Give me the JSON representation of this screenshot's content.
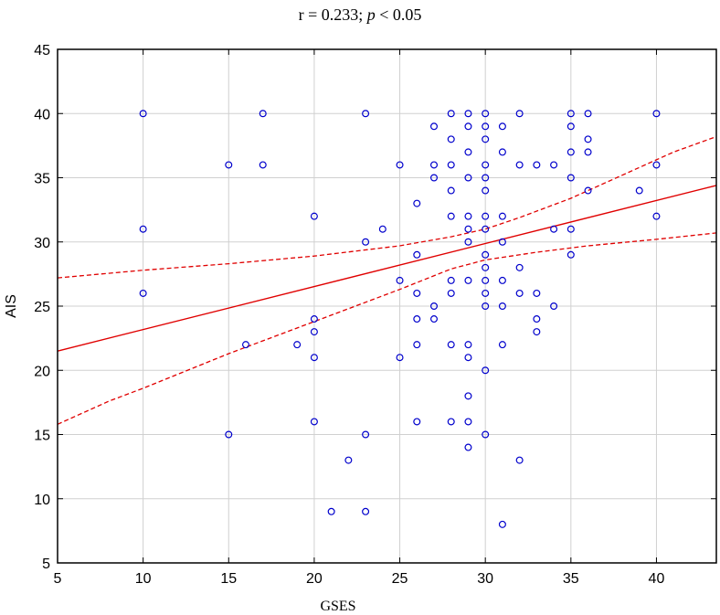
{
  "chart_data": {
    "type": "scatter",
    "title_parts": [
      "r = 0.233; ",
      "p",
      " < 0.05"
    ],
    "xlabel": "GSES",
    "ylabel": "AIS",
    "xlim": [
      5,
      43.5
    ],
    "ylim": [
      5,
      45
    ],
    "xticks": [
      5,
      10,
      15,
      20,
      25,
      30,
      35,
      40
    ],
    "yticks": [
      5,
      10,
      15,
      20,
      25,
      30,
      35,
      40,
      45
    ],
    "grid": true,
    "colors": {
      "points": "#0000cc",
      "fit": "#e00000",
      "grid": "#d0d0d0"
    },
    "points": [
      [
        10,
        40
      ],
      [
        10,
        31
      ],
      [
        10,
        26
      ],
      [
        15,
        36
      ],
      [
        15,
        15
      ],
      [
        16,
        22
      ],
      [
        17,
        40
      ],
      [
        17,
        36
      ],
      [
        19,
        22
      ],
      [
        20,
        32
      ],
      [
        20,
        24
      ],
      [
        20,
        23
      ],
      [
        20,
        21
      ],
      [
        20,
        16
      ],
      [
        21,
        9
      ],
      [
        22,
        13
      ],
      [
        23,
        40
      ],
      [
        23,
        30
      ],
      [
        23,
        15
      ],
      [
        23,
        9
      ],
      [
        24,
        31
      ],
      [
        25,
        36
      ],
      [
        25,
        27
      ],
      [
        25,
        21
      ],
      [
        26,
        33
      ],
      [
        26,
        29
      ],
      [
        26,
        26
      ],
      [
        26,
        24
      ],
      [
        26,
        22
      ],
      [
        26,
        16
      ],
      [
        27,
        39
      ],
      [
        27,
        36
      ],
      [
        27,
        35
      ],
      [
        27,
        25
      ],
      [
        27,
        24
      ],
      [
        28,
        40
      ],
      [
        28,
        38
      ],
      [
        28,
        36
      ],
      [
        28,
        34
      ],
      [
        28,
        32
      ],
      [
        28,
        27
      ],
      [
        28,
        26
      ],
      [
        28,
        22
      ],
      [
        28,
        16
      ],
      [
        29,
        40
      ],
      [
        29,
        39
      ],
      [
        29,
        37
      ],
      [
        29,
        35
      ],
      [
        29,
        32
      ],
      [
        29,
        31
      ],
      [
        29,
        30
      ],
      [
        29,
        27
      ],
      [
        29,
        22
      ],
      [
        29,
        21
      ],
      [
        29,
        18
      ],
      [
        29,
        16
      ],
      [
        29,
        14
      ],
      [
        30,
        40
      ],
      [
        30,
        39
      ],
      [
        30,
        38
      ],
      [
        30,
        36
      ],
      [
        30,
        35
      ],
      [
        30,
        34
      ],
      [
        30,
        32
      ],
      [
        30,
        31
      ],
      [
        30,
        29
      ],
      [
        30,
        28
      ],
      [
        30,
        27
      ],
      [
        30,
        26
      ],
      [
        30,
        25
      ],
      [
        30,
        20
      ],
      [
        30,
        15
      ],
      [
        31,
        39
      ],
      [
        31,
        37
      ],
      [
        31,
        32
      ],
      [
        31,
        30
      ],
      [
        31,
        27
      ],
      [
        31,
        25
      ],
      [
        31,
        22
      ],
      [
        31,
        8
      ],
      [
        32,
        40
      ],
      [
        32,
        36
      ],
      [
        32,
        28
      ],
      [
        32,
        26
      ],
      [
        32,
        13
      ],
      [
        33,
        36
      ],
      [
        33,
        26
      ],
      [
        33,
        24
      ],
      [
        33,
        23
      ],
      [
        34,
        36
      ],
      [
        34,
        31
      ],
      [
        34,
        25
      ],
      [
        35,
        40
      ],
      [
        35,
        39
      ],
      [
        35,
        37
      ],
      [
        35,
        35
      ],
      [
        35,
        31
      ],
      [
        35,
        29
      ],
      [
        36,
        40
      ],
      [
        36,
        38
      ],
      [
        36,
        37
      ],
      [
        36,
        34
      ],
      [
        39,
        34
      ],
      [
        40,
        40
      ],
      [
        40,
        36
      ],
      [
        40,
        32
      ]
    ],
    "regression": {
      "x": [
        5,
        43.5
      ],
      "y": [
        21.5,
        34.4
      ]
    },
    "ci_upper": [
      [
        5,
        27.2
      ],
      [
        10,
        27.8
      ],
      [
        15,
        28.3
      ],
      [
        20,
        28.9
      ],
      [
        25,
        29.7
      ],
      [
        28,
        30.4
      ],
      [
        30,
        31.0
      ],
      [
        32,
        31.9
      ],
      [
        35,
        33.4
      ],
      [
        38,
        35.2
      ],
      [
        41,
        37.0
      ],
      [
        43.5,
        38.2
      ]
    ],
    "ci_lower": [
      [
        5,
        15.8
      ],
      [
        8,
        17.6
      ],
      [
        10,
        18.6
      ],
      [
        15,
        21.3
      ],
      [
        20,
        23.8
      ],
      [
        25,
        26.3
      ],
      [
        28,
        27.9
      ],
      [
        30,
        28.6
      ],
      [
        33,
        29.2
      ],
      [
        36,
        29.7
      ],
      [
        40,
        30.2
      ],
      [
        43.5,
        30.7
      ]
    ]
  }
}
